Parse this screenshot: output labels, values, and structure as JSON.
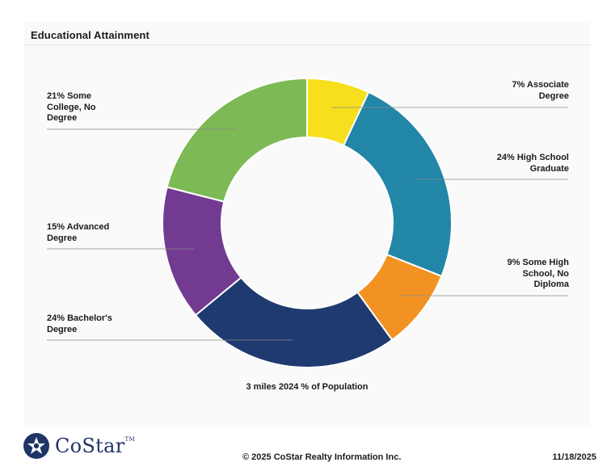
{
  "header": {
    "title": "Educational Attainment"
  },
  "chart_data": {
    "type": "donut",
    "title": "Educational Attainment",
    "subtitle": "3 miles 2024 % of Population",
    "unit": "%",
    "slices": [
      {
        "name": "Associate Degree",
        "value": 7,
        "color": "#f7df1e",
        "label_lines": [
          "7% Associate",
          "Degree"
        ]
      },
      {
        "name": "High School Graduate",
        "value": 24,
        "color": "#2286a7",
        "label_lines": [
          "24% High School",
          "Graduate"
        ]
      },
      {
        "name": "Some High School, No Diploma",
        "value": 9,
        "color": "#f29222",
        "label_lines": [
          "9% Some High",
          "School, No",
          "Diploma"
        ]
      },
      {
        "name": "Bachelor's Degree",
        "value": 24,
        "color": "#1f3a70",
        "label_lines": [
          "24% Bachelor's",
          "Degree"
        ]
      },
      {
        "name": "Advanced Degree",
        "value": 15,
        "color": "#723b91",
        "label_lines": [
          "15% Advanced",
          "Degree"
        ]
      },
      {
        "name": "Some College, No Degree",
        "value": 21,
        "color": "#7db955",
        "label_lines": [
          "21% Some",
          "College, No",
          "Degree"
        ]
      }
    ]
  },
  "footer": {
    "brand": "CoStar",
    "trademark": "TM",
    "copyright": "© 2025 CoStar Realty Information Inc.",
    "date": "11/18/2025"
  }
}
